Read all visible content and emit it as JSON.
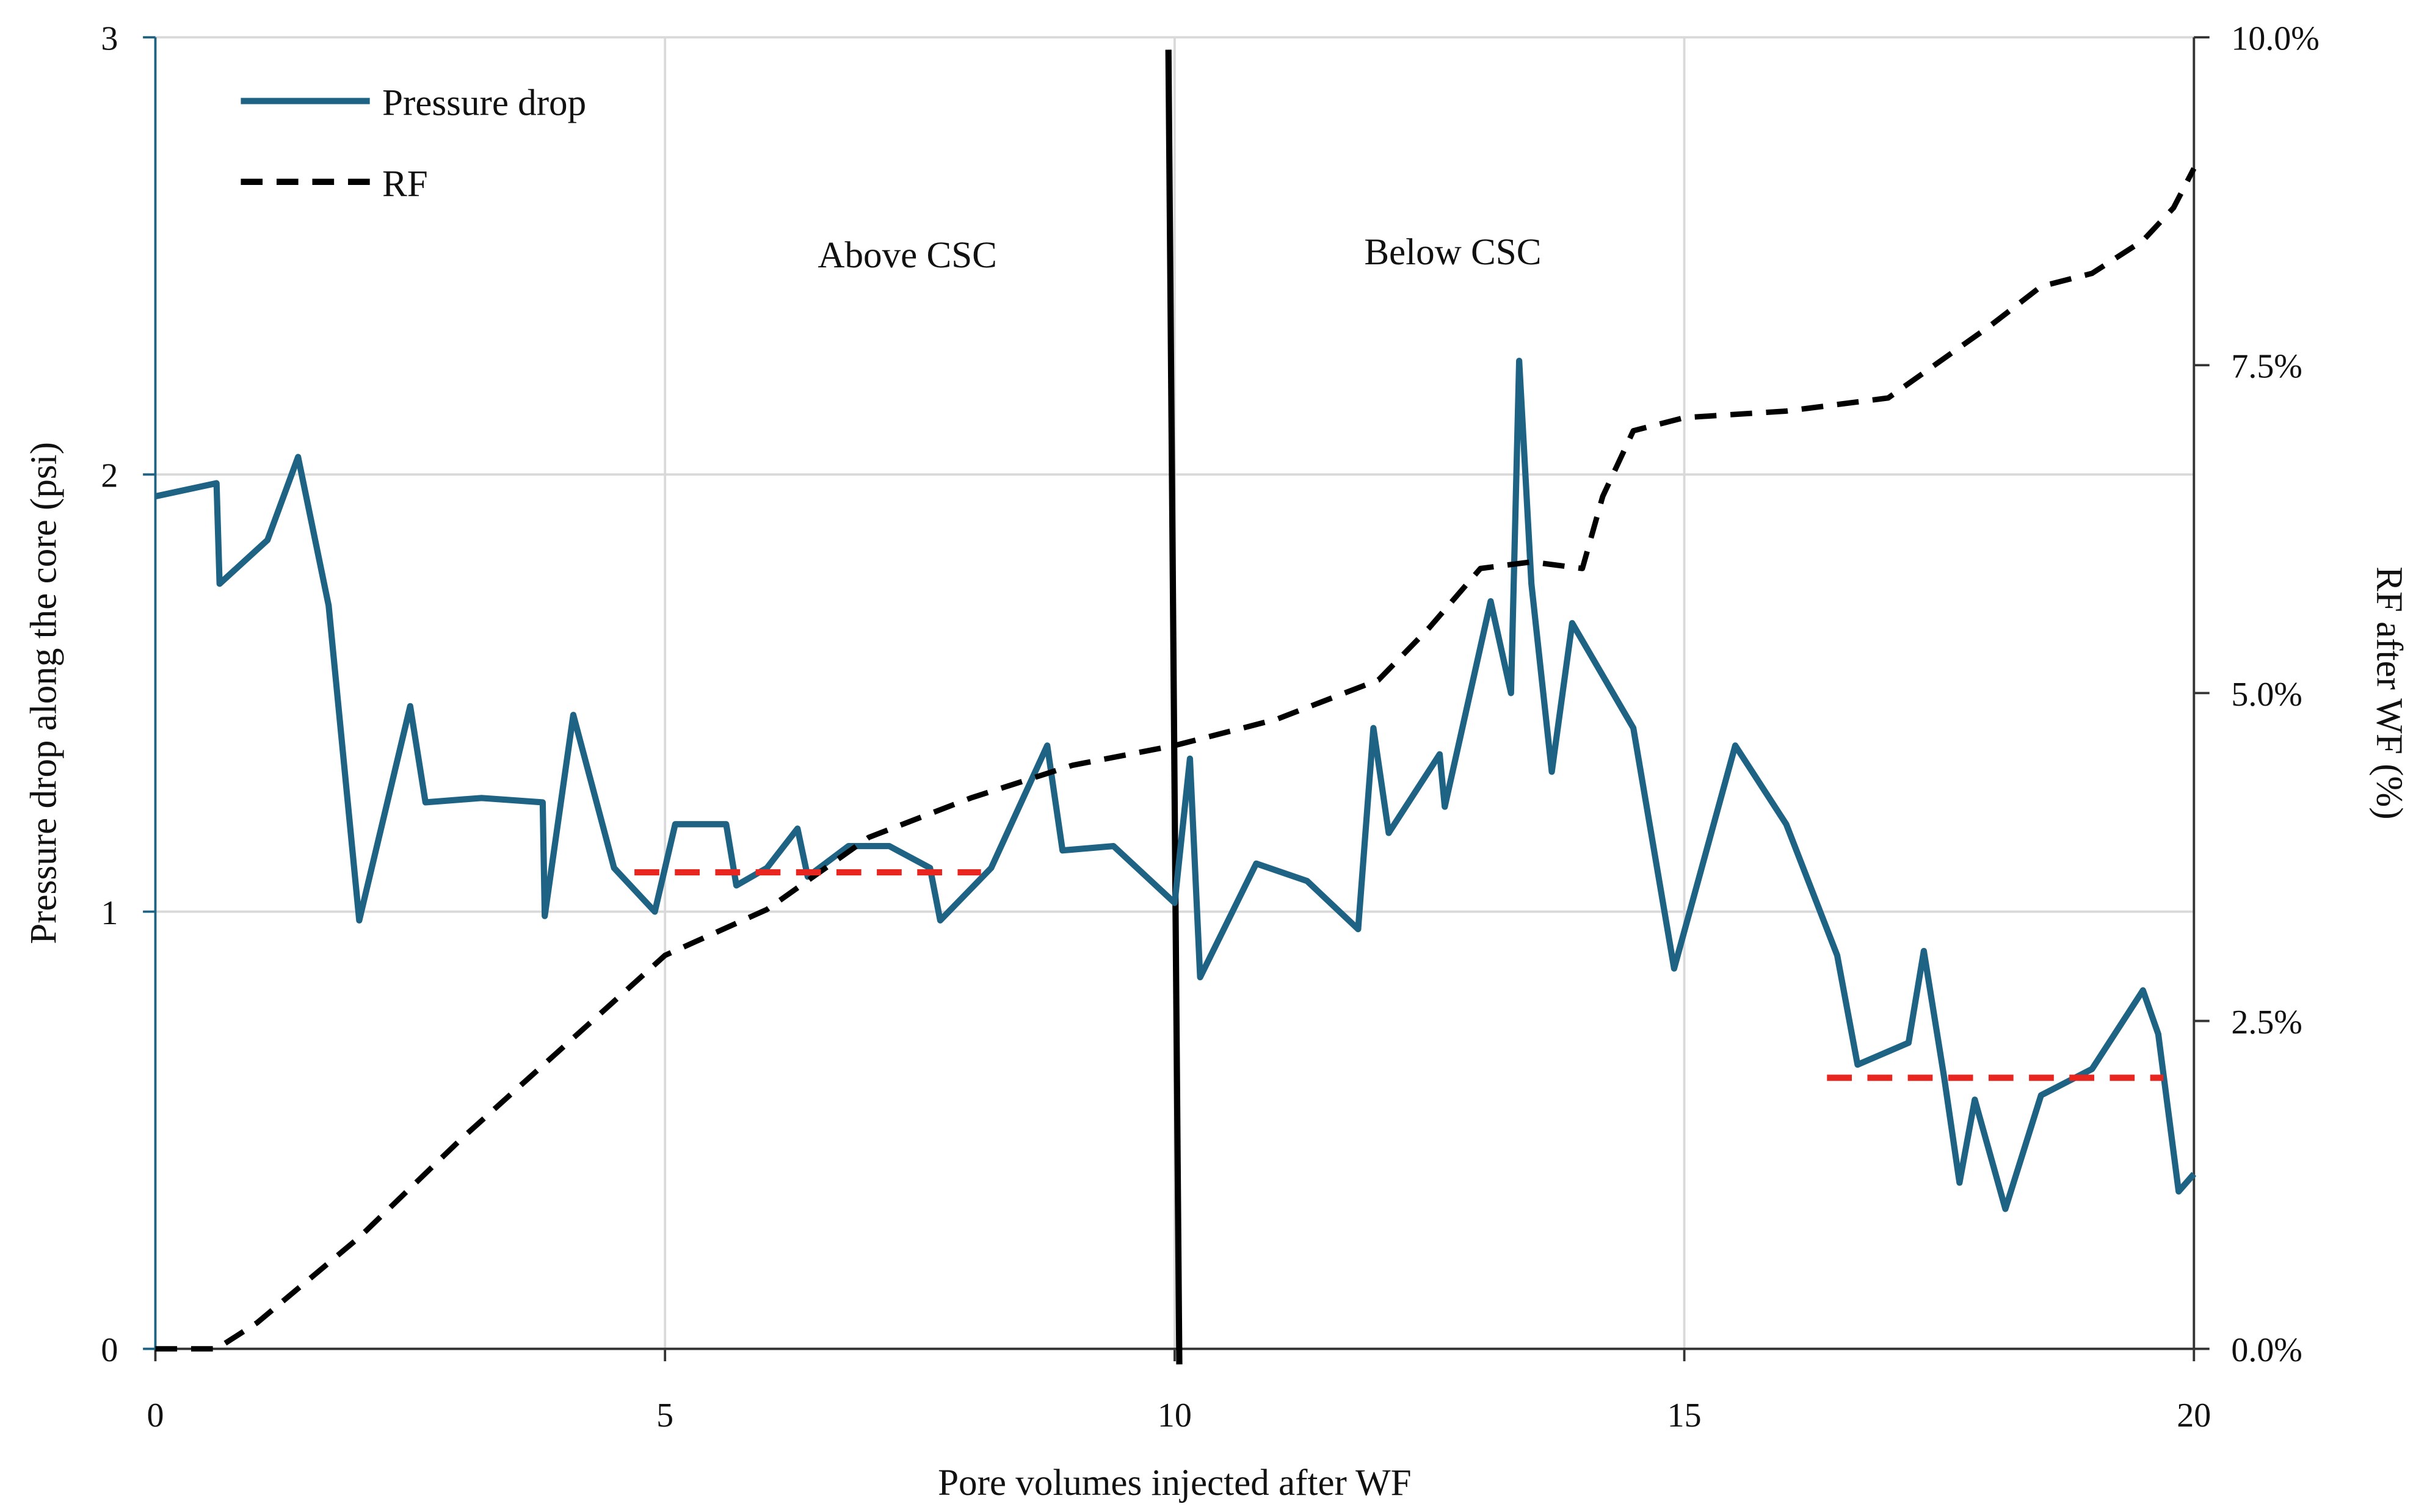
{
  "chart_data": {
    "type": "line",
    "xlabel": "Pore volumes injected after WF",
    "ylabel": "Pressure drop along the core (psi)",
    "y2label": "RF after WF (%)",
    "annotations": [
      "Above CSC",
      "Below CSC"
    ],
    "xlim": [
      0,
      20
    ],
    "xticks": [
      0,
      5,
      10,
      15,
      20
    ],
    "ylim": [
      0,
      3
    ],
    "yticks": [
      0,
      1,
      2,
      3
    ],
    "y2lim": [
      0,
      10
    ],
    "y2ticks": [
      {
        "value": 0,
        "label": "0.0%"
      },
      {
        "value": 2.5,
        "label": "2.5%"
      },
      {
        "value": 5,
        "label": "5.0%"
      },
      {
        "value": 7.5,
        "label": "7.5%"
      },
      {
        "value": 10,
        "label": "10.0%"
      }
    ],
    "grid": true,
    "legend": "upper left",
    "series": [
      {
        "name": "Pressure drop",
        "color": "#1f6384",
        "dash": false,
        "x": [
          0,
          0.6,
          0.63,
          1.1,
          1.4,
          1.7,
          2.0,
          2.5,
          2.65,
          3.2,
          3.8,
          3.82,
          4.1,
          4.5,
          4.9,
          5.1,
          5.6,
          5.7,
          6.0,
          6.3,
          6.4,
          6.8,
          7.2,
          7.6,
          7.7,
          8.2,
          8.75,
          8.9,
          9.4,
          10.0,
          10.15,
          10.25,
          10.8,
          11.3,
          11.8,
          11.95,
          12.1,
          12.6,
          12.65,
          13.1,
          13.3,
          13.38,
          13.5,
          13.7,
          13.9,
          14.5,
          14.9,
          15.5,
          16.0,
          16.5,
          16.7,
          17.2,
          17.35,
          17.55,
          17.7,
          17.85,
          18.15,
          18.5,
          19.0,
          19.5,
          19.65,
          19.85,
          20
        ],
        "values": [
          1.95,
          1.98,
          1.75,
          1.85,
          2.04,
          1.7,
          0.98,
          1.47,
          1.25,
          1.26,
          1.25,
          0.99,
          1.45,
          1.1,
          1.0,
          1.2,
          1.2,
          1.06,
          1.1,
          1.19,
          1.08,
          1.15,
          1.15,
          1.1,
          0.98,
          1.1,
          1.38,
          1.14,
          1.15,
          1.02,
          1.35,
          0.85,
          1.11,
          1.07,
          0.96,
          1.42,
          1.18,
          1.36,
          1.24,
          1.71,
          1.5,
          2.26,
          1.75,
          1.32,
          1.66,
          1.42,
          0.87,
          1.38,
          1.2,
          0.9,
          0.65,
          0.7,
          0.91,
          0.62,
          0.38,
          0.57,
          0.32,
          0.58,
          0.64,
          0.82,
          0.72,
          0.36,
          0.4
        ]
      },
      {
        "name": "RF",
        "color": "#000000",
        "dash": true,
        "axis": "y2",
        "x": [
          0,
          0.6,
          1.0,
          2,
          3,
          4,
          5,
          6,
          7,
          8,
          9,
          10,
          11,
          12,
          12.5,
          13,
          13.5,
          14,
          14.2,
          14.5,
          15,
          16,
          17,
          18,
          18.5,
          19,
          19.5,
          19.8,
          20
        ],
        "values": [
          0,
          0,
          0.2,
          0.85,
          1.6,
          2.3,
          3.0,
          3.35,
          3.9,
          4.2,
          4.45,
          4.6,
          4.8,
          5.1,
          5.5,
          5.95,
          6.0,
          5.95,
          6.5,
          7.0,
          7.1,
          7.15,
          7.25,
          7.8,
          8.1,
          8.2,
          8.45,
          8.7,
          9.0
        ]
      }
    ],
    "reference_lines": [
      {
        "value": 1.09,
        "x": [
          4.7,
          8.1
        ],
        "color": "#e8251f"
      },
      {
        "value": 0.62,
        "x": [
          16.4,
          19.7
        ],
        "color": "#e8251f"
      }
    ],
    "divider": {
      "x": 10,
      "color": "#000000"
    }
  }
}
